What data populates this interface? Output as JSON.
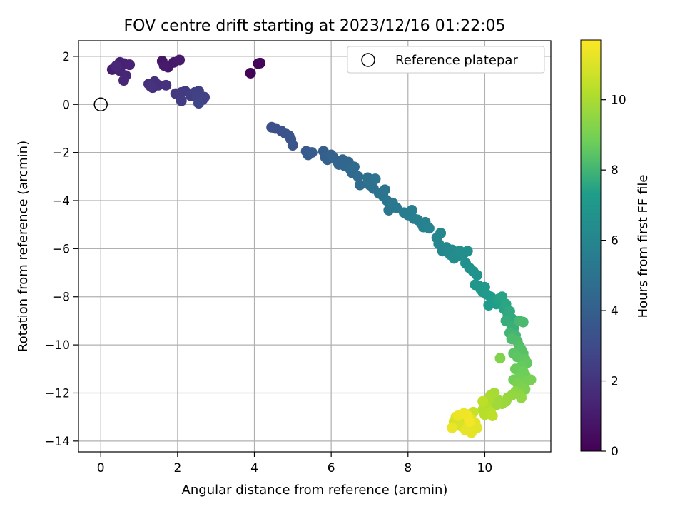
{
  "chart_data": {
    "type": "scatter",
    "title": "FOV centre drift starting at 2023/12/16 01:22:05",
    "xlabel": "Angular distance from reference (arcmin)",
    "ylabel": "Rotation from reference (arcmin)",
    "xlim": [
      -0.58,
      11.72
    ],
    "ylim": [
      -14.45,
      2.65
    ],
    "xticks": [
      0,
      2,
      4,
      6,
      8,
      10
    ],
    "yticks": [
      2,
      0,
      -2,
      -4,
      -6,
      -8,
      -10,
      -12,
      -14
    ],
    "x_tick_labels": [
      "0",
      "2",
      "4",
      "6",
      "8",
      "10"
    ],
    "y_tick_labels": [
      "2",
      "0",
      "−2",
      "−4",
      "−6",
      "−8",
      "−10",
      "−12",
      "−14"
    ],
    "grid": true,
    "legend": {
      "position": "top-right",
      "entries": [
        {
          "label": "Reference platepar",
          "marker": "open-circle",
          "color": "#000000"
        }
      ]
    },
    "reference_point": {
      "x": 0,
      "y": 0,
      "label": "Reference platepar"
    },
    "colorbar": {
      "label": "Hours from first FF file",
      "range": [
        0,
        11.7
      ],
      "ticks": [
        0,
        2,
        4,
        6,
        8,
        10
      ],
      "tick_labels": [
        "0",
        "2",
        "4",
        "6",
        "8",
        "10"
      ],
      "colormap": "viridis",
      "colors": [
        "#440154",
        "#482777",
        "#3f4a8a",
        "#31678e",
        "#26838f",
        "#1f9d8a",
        "#6cce5a",
        "#b6de2b",
        "#fde725"
      ]
    },
    "series": [
      {
        "description": "drift samples colored by hours from first FF file",
        "points": [
          [
            3.9,
            1.3,
            0.1
          ],
          [
            4.1,
            1.7,
            0.2
          ],
          [
            4.15,
            1.72,
            0.25
          ],
          [
            1.6,
            1.8,
            0.8
          ],
          [
            1.75,
            1.55,
            0.85
          ],
          [
            1.9,
            1.75,
            0.9
          ],
          [
            2.05,
            1.85,
            0.95
          ],
          [
            1.65,
            1.62,
            1.0
          ],
          [
            0.3,
            1.45,
            1.1
          ],
          [
            0.45,
            1.55,
            1.15
          ],
          [
            0.5,
            1.75,
            1.2
          ],
          [
            0.6,
            1.7,
            1.25
          ],
          [
            0.75,
            1.65,
            1.3
          ],
          [
            0.5,
            1.4,
            1.35
          ],
          [
            0.65,
            1.2,
            1.4
          ],
          [
            0.6,
            1.0,
            1.45
          ],
          [
            0.4,
            1.6,
            1.5
          ],
          [
            1.25,
            0.85,
            1.7
          ],
          [
            1.35,
            0.7,
            1.75
          ],
          [
            1.4,
            0.95,
            1.8
          ],
          [
            1.5,
            0.8,
            1.85
          ],
          [
            1.7,
            0.8,
            1.9
          ],
          [
            1.3,
            0.75,
            1.95
          ],
          [
            1.95,
            0.45,
            2.2
          ],
          [
            2.1,
            0.5,
            2.25
          ],
          [
            2.2,
            0.55,
            2.3
          ],
          [
            2.1,
            0.15,
            2.35
          ],
          [
            2.35,
            0.35,
            2.4
          ],
          [
            2.45,
            0.5,
            2.45
          ],
          [
            2.55,
            0.55,
            2.5
          ],
          [
            2.5,
            0.3,
            2.55
          ],
          [
            2.65,
            0.2,
            2.6
          ],
          [
            2.7,
            0.3,
            2.65
          ],
          [
            2.55,
            0.05,
            2.7
          ],
          [
            4.45,
            -0.95,
            3.2
          ],
          [
            4.55,
            -1.0,
            3.25
          ],
          [
            4.7,
            -1.1,
            3.3
          ],
          [
            4.8,
            -1.2,
            3.35
          ],
          [
            4.9,
            -1.3,
            3.4
          ],
          [
            4.95,
            -1.45,
            3.45
          ],
          [
            5.0,
            -1.7,
            3.5
          ],
          [
            5.35,
            -1.95,
            3.8
          ],
          [
            5.4,
            -2.1,
            3.85
          ],
          [
            5.5,
            -2.0,
            3.9
          ],
          [
            5.8,
            -1.95,
            3.95
          ],
          [
            5.85,
            -2.2,
            4.0
          ],
          [
            5.9,
            -2.3,
            4.05
          ],
          [
            6.0,
            -2.1,
            4.1
          ],
          [
            6.05,
            -2.2,
            4.15
          ],
          [
            6.15,
            -2.35,
            4.2
          ],
          [
            6.2,
            -2.5,
            4.25
          ],
          [
            6.3,
            -2.3,
            4.3
          ],
          [
            6.35,
            -2.55,
            4.35
          ],
          [
            6.45,
            -2.4,
            4.4
          ],
          [
            6.5,
            -2.7,
            4.45
          ],
          [
            6.55,
            -2.85,
            4.5
          ],
          [
            6.6,
            -2.6,
            4.55
          ],
          [
            6.7,
            -3.0,
            4.6
          ],
          [
            6.75,
            -3.35,
            4.65
          ],
          [
            6.95,
            -3.05,
            4.8
          ],
          [
            7.0,
            -3.35,
            4.85
          ],
          [
            7.1,
            -3.5,
            4.9
          ],
          [
            7.15,
            -3.1,
            4.95
          ],
          [
            7.25,
            -3.7,
            5.0
          ],
          [
            7.35,
            -3.8,
            5.05
          ],
          [
            7.4,
            -3.55,
            5.1
          ],
          [
            7.45,
            -4.0,
            5.15
          ],
          [
            7.5,
            -4.4,
            5.2
          ],
          [
            7.6,
            -4.1,
            5.25
          ],
          [
            7.7,
            -4.3,
            5.3
          ],
          [
            7.9,
            -4.5,
            5.45
          ],
          [
            8.0,
            -4.6,
            5.5
          ],
          [
            8.1,
            -4.4,
            5.55
          ],
          [
            8.15,
            -4.75,
            5.6
          ],
          [
            8.25,
            -4.8,
            5.65
          ],
          [
            8.35,
            -4.95,
            5.7
          ],
          [
            8.4,
            -5.1,
            5.75
          ],
          [
            8.45,
            -4.9,
            5.8
          ],
          [
            8.55,
            -5.15,
            5.85
          ],
          [
            8.75,
            -5.55,
            5.95
          ],
          [
            8.8,
            -5.8,
            6.0
          ],
          [
            8.85,
            -5.35,
            6.05
          ],
          [
            8.9,
            -6.1,
            6.1
          ],
          [
            9.0,
            -5.95,
            6.15
          ],
          [
            9.05,
            -6.15,
            6.2
          ],
          [
            9.1,
            -6.25,
            6.25
          ],
          [
            9.15,
            -6.05,
            6.3
          ],
          [
            9.2,
            -6.4,
            6.35
          ],
          [
            9.3,
            -6.3,
            6.4
          ],
          [
            9.35,
            -6.1,
            6.45
          ],
          [
            9.45,
            -6.2,
            6.5
          ],
          [
            9.55,
            -6.1,
            6.55
          ],
          [
            9.5,
            -6.6,
            6.6
          ],
          [
            9.6,
            -6.8,
            6.65
          ],
          [
            9.7,
            -6.95,
            6.7
          ],
          [
            9.8,
            -7.1,
            6.75
          ],
          [
            9.75,
            -7.5,
            6.9
          ],
          [
            9.85,
            -7.55,
            6.95
          ],
          [
            9.9,
            -7.7,
            7.0
          ],
          [
            9.95,
            -7.8,
            7.05
          ],
          [
            10.0,
            -7.6,
            7.1
          ],
          [
            10.05,
            -7.9,
            7.15
          ],
          [
            10.15,
            -8.0,
            7.2
          ],
          [
            10.1,
            -8.35,
            7.25
          ],
          [
            10.2,
            -8.2,
            7.3
          ],
          [
            10.3,
            -8.3,
            7.35
          ],
          [
            10.35,
            -8.1,
            7.4
          ],
          [
            10.45,
            -8.0,
            7.45
          ],
          [
            10.5,
            -8.5,
            7.5
          ],
          [
            10.55,
            -8.3,
            7.55
          ],
          [
            10.6,
            -8.7,
            7.6
          ],
          [
            10.65,
            -8.6,
            7.65
          ],
          [
            10.7,
            -8.9,
            7.7
          ],
          [
            10.55,
            -9.0,
            7.75
          ],
          [
            10.7,
            -9.2,
            7.8
          ],
          [
            10.75,
            -9.3,
            7.85
          ],
          [
            10.65,
            -9.5,
            8.0
          ],
          [
            10.8,
            -9.6,
            8.05
          ],
          [
            10.9,
            -9.0,
            8.1
          ],
          [
            11.0,
            -9.05,
            8.15
          ],
          [
            10.7,
            -9.75,
            8.2
          ],
          [
            10.85,
            -9.85,
            8.25
          ],
          [
            10.9,
            -10.05,
            8.3
          ],
          [
            10.95,
            -10.2,
            8.35
          ],
          [
            11.0,
            -10.35,
            8.4
          ],
          [
            10.75,
            -10.35,
            8.45
          ],
          [
            10.85,
            -10.5,
            8.5
          ],
          [
            11.05,
            -10.6,
            8.55
          ],
          [
            11.1,
            -10.75,
            8.6
          ],
          [
            10.95,
            -10.9,
            8.65
          ],
          [
            10.8,
            -11.0,
            8.7
          ],
          [
            11.0,
            -11.1,
            8.75
          ],
          [
            11.05,
            -11.25,
            8.8
          ],
          [
            10.9,
            -11.35,
            8.85
          ],
          [
            10.75,
            -11.45,
            8.9
          ],
          [
            11.1,
            -11.5,
            8.95
          ],
          [
            11.2,
            -11.45,
            9.0
          ],
          [
            10.85,
            -11.6,
            9.05
          ],
          [
            10.95,
            -11.75,
            9.1
          ],
          [
            11.05,
            -11.85,
            9.15
          ],
          [
            10.4,
            -10.55,
            9.2
          ],
          [
            10.8,
            -11.95,
            9.4
          ],
          [
            10.9,
            -12.05,
            9.45
          ],
          [
            10.95,
            -12.2,
            9.5
          ],
          [
            10.7,
            -12.1,
            9.55
          ],
          [
            10.6,
            -12.2,
            9.6
          ],
          [
            10.55,
            -12.35,
            9.65
          ],
          [
            10.45,
            -12.45,
            9.7
          ],
          [
            10.35,
            -12.3,
            9.75
          ],
          [
            10.3,
            -12.5,
            9.8
          ],
          [
            10.25,
            -12.0,
            9.95
          ],
          [
            10.15,
            -12.1,
            10.0
          ],
          [
            10.1,
            -12.3,
            10.05
          ],
          [
            10.0,
            -12.45,
            10.1
          ],
          [
            10.05,
            -12.65,
            10.15
          ],
          [
            9.95,
            -12.7,
            10.2
          ],
          [
            10.0,
            -12.9,
            10.25
          ],
          [
            10.15,
            -12.8,
            10.3
          ],
          [
            10.2,
            -12.95,
            10.35
          ],
          [
            9.95,
            -12.35,
            10.4
          ],
          [
            9.7,
            -12.8,
            10.6
          ],
          [
            9.55,
            -12.9,
            10.65
          ],
          [
            9.45,
            -13.0,
            10.7
          ],
          [
            9.35,
            -13.1,
            10.75
          ],
          [
            9.25,
            -13.0,
            10.8
          ],
          [
            9.2,
            -13.2,
            10.85
          ],
          [
            9.3,
            -13.3,
            10.9
          ],
          [
            9.4,
            -13.4,
            10.95
          ],
          [
            9.55,
            -13.3,
            11.0
          ],
          [
            9.65,
            -13.1,
            11.05
          ],
          [
            9.75,
            -13.25,
            11.1
          ],
          [
            9.8,
            -13.45,
            11.15
          ],
          [
            9.65,
            -13.65,
            11.2
          ],
          [
            9.5,
            -13.55,
            11.25
          ],
          [
            9.15,
            -13.45,
            11.3
          ],
          [
            9.3,
            -12.95,
            11.35
          ],
          [
            9.45,
            -12.85,
            11.4
          ],
          [
            9.55,
            -12.95,
            11.45
          ],
          [
            9.6,
            -13.2,
            11.5
          ]
        ]
      }
    ]
  }
}
